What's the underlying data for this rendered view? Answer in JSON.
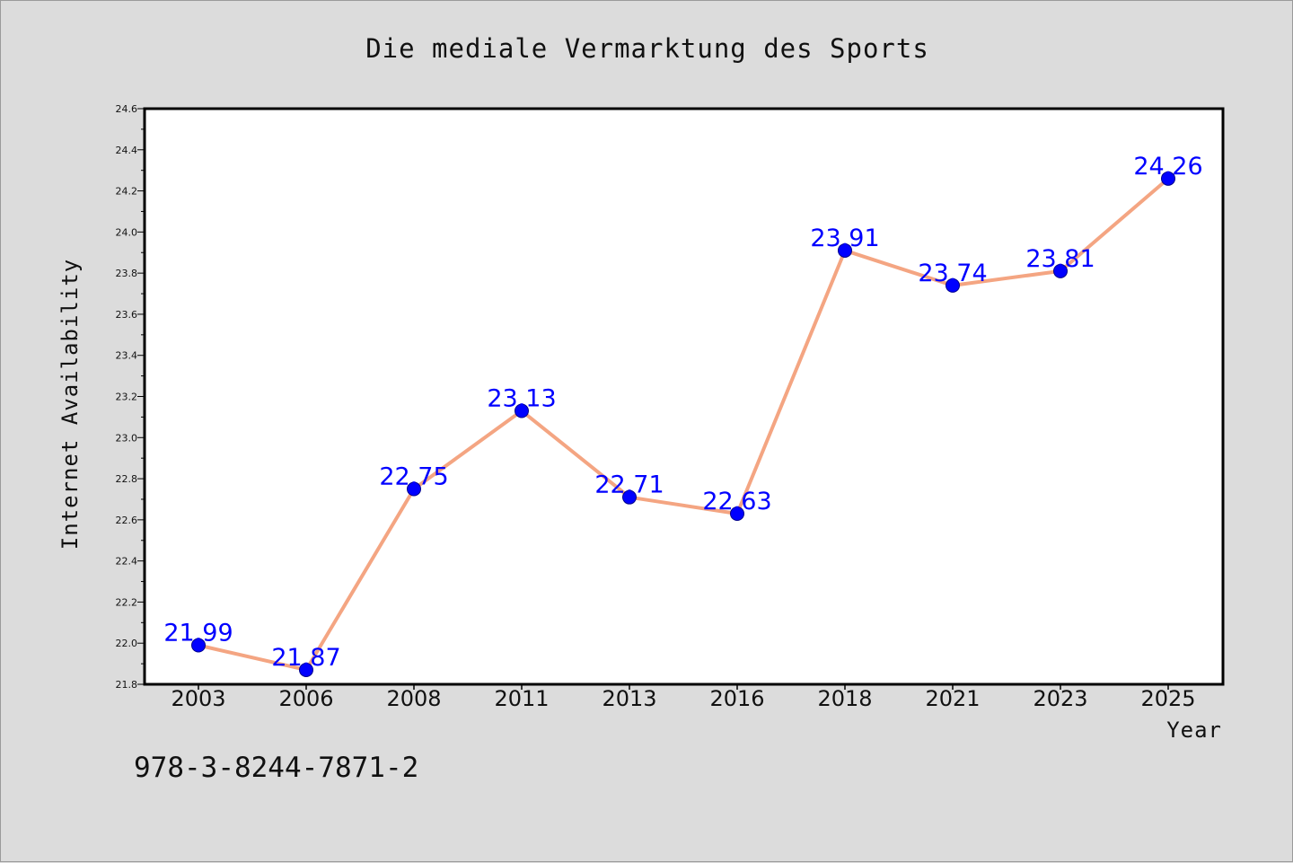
{
  "chart_data": {
    "type": "line",
    "title": "Die mediale Vermarktung des Sports",
    "xlabel": "Year",
    "ylabel": "Internet Availability",
    "categories": [
      "2003",
      "2006",
      "2008",
      "2011",
      "2013",
      "2016",
      "2018",
      "2021",
      "2023",
      "2025"
    ],
    "series": [
      {
        "values": [
          21.99,
          21.87,
          22.75,
          23.13,
          22.71,
          22.63,
          23.91,
          23.74,
          23.81,
          24.26
        ]
      }
    ],
    "data_labels": [
      "21.99",
      "21.87",
      "22.75",
      "23.13",
      "22.71",
      "22.63",
      "23.91",
      "23.74",
      "23.81",
      "24.26"
    ],
    "ylim": [
      21.8,
      24.6
    ],
    "yticks": [
      "21.8",
      "22.0",
      "22.2",
      "22.4",
      "22.6",
      "22.8",
      "23.0",
      "23.2",
      "23.4",
      "23.6",
      "23.8",
      "24.0",
      "24.2",
      "24.4",
      "24.6"
    ],
    "grid": false,
    "line_color": "#f4a582",
    "marker_color": "#0000ff",
    "label_color": "#0000ff"
  },
  "footer": {
    "isbn": "978-3-8244-7871-2"
  }
}
